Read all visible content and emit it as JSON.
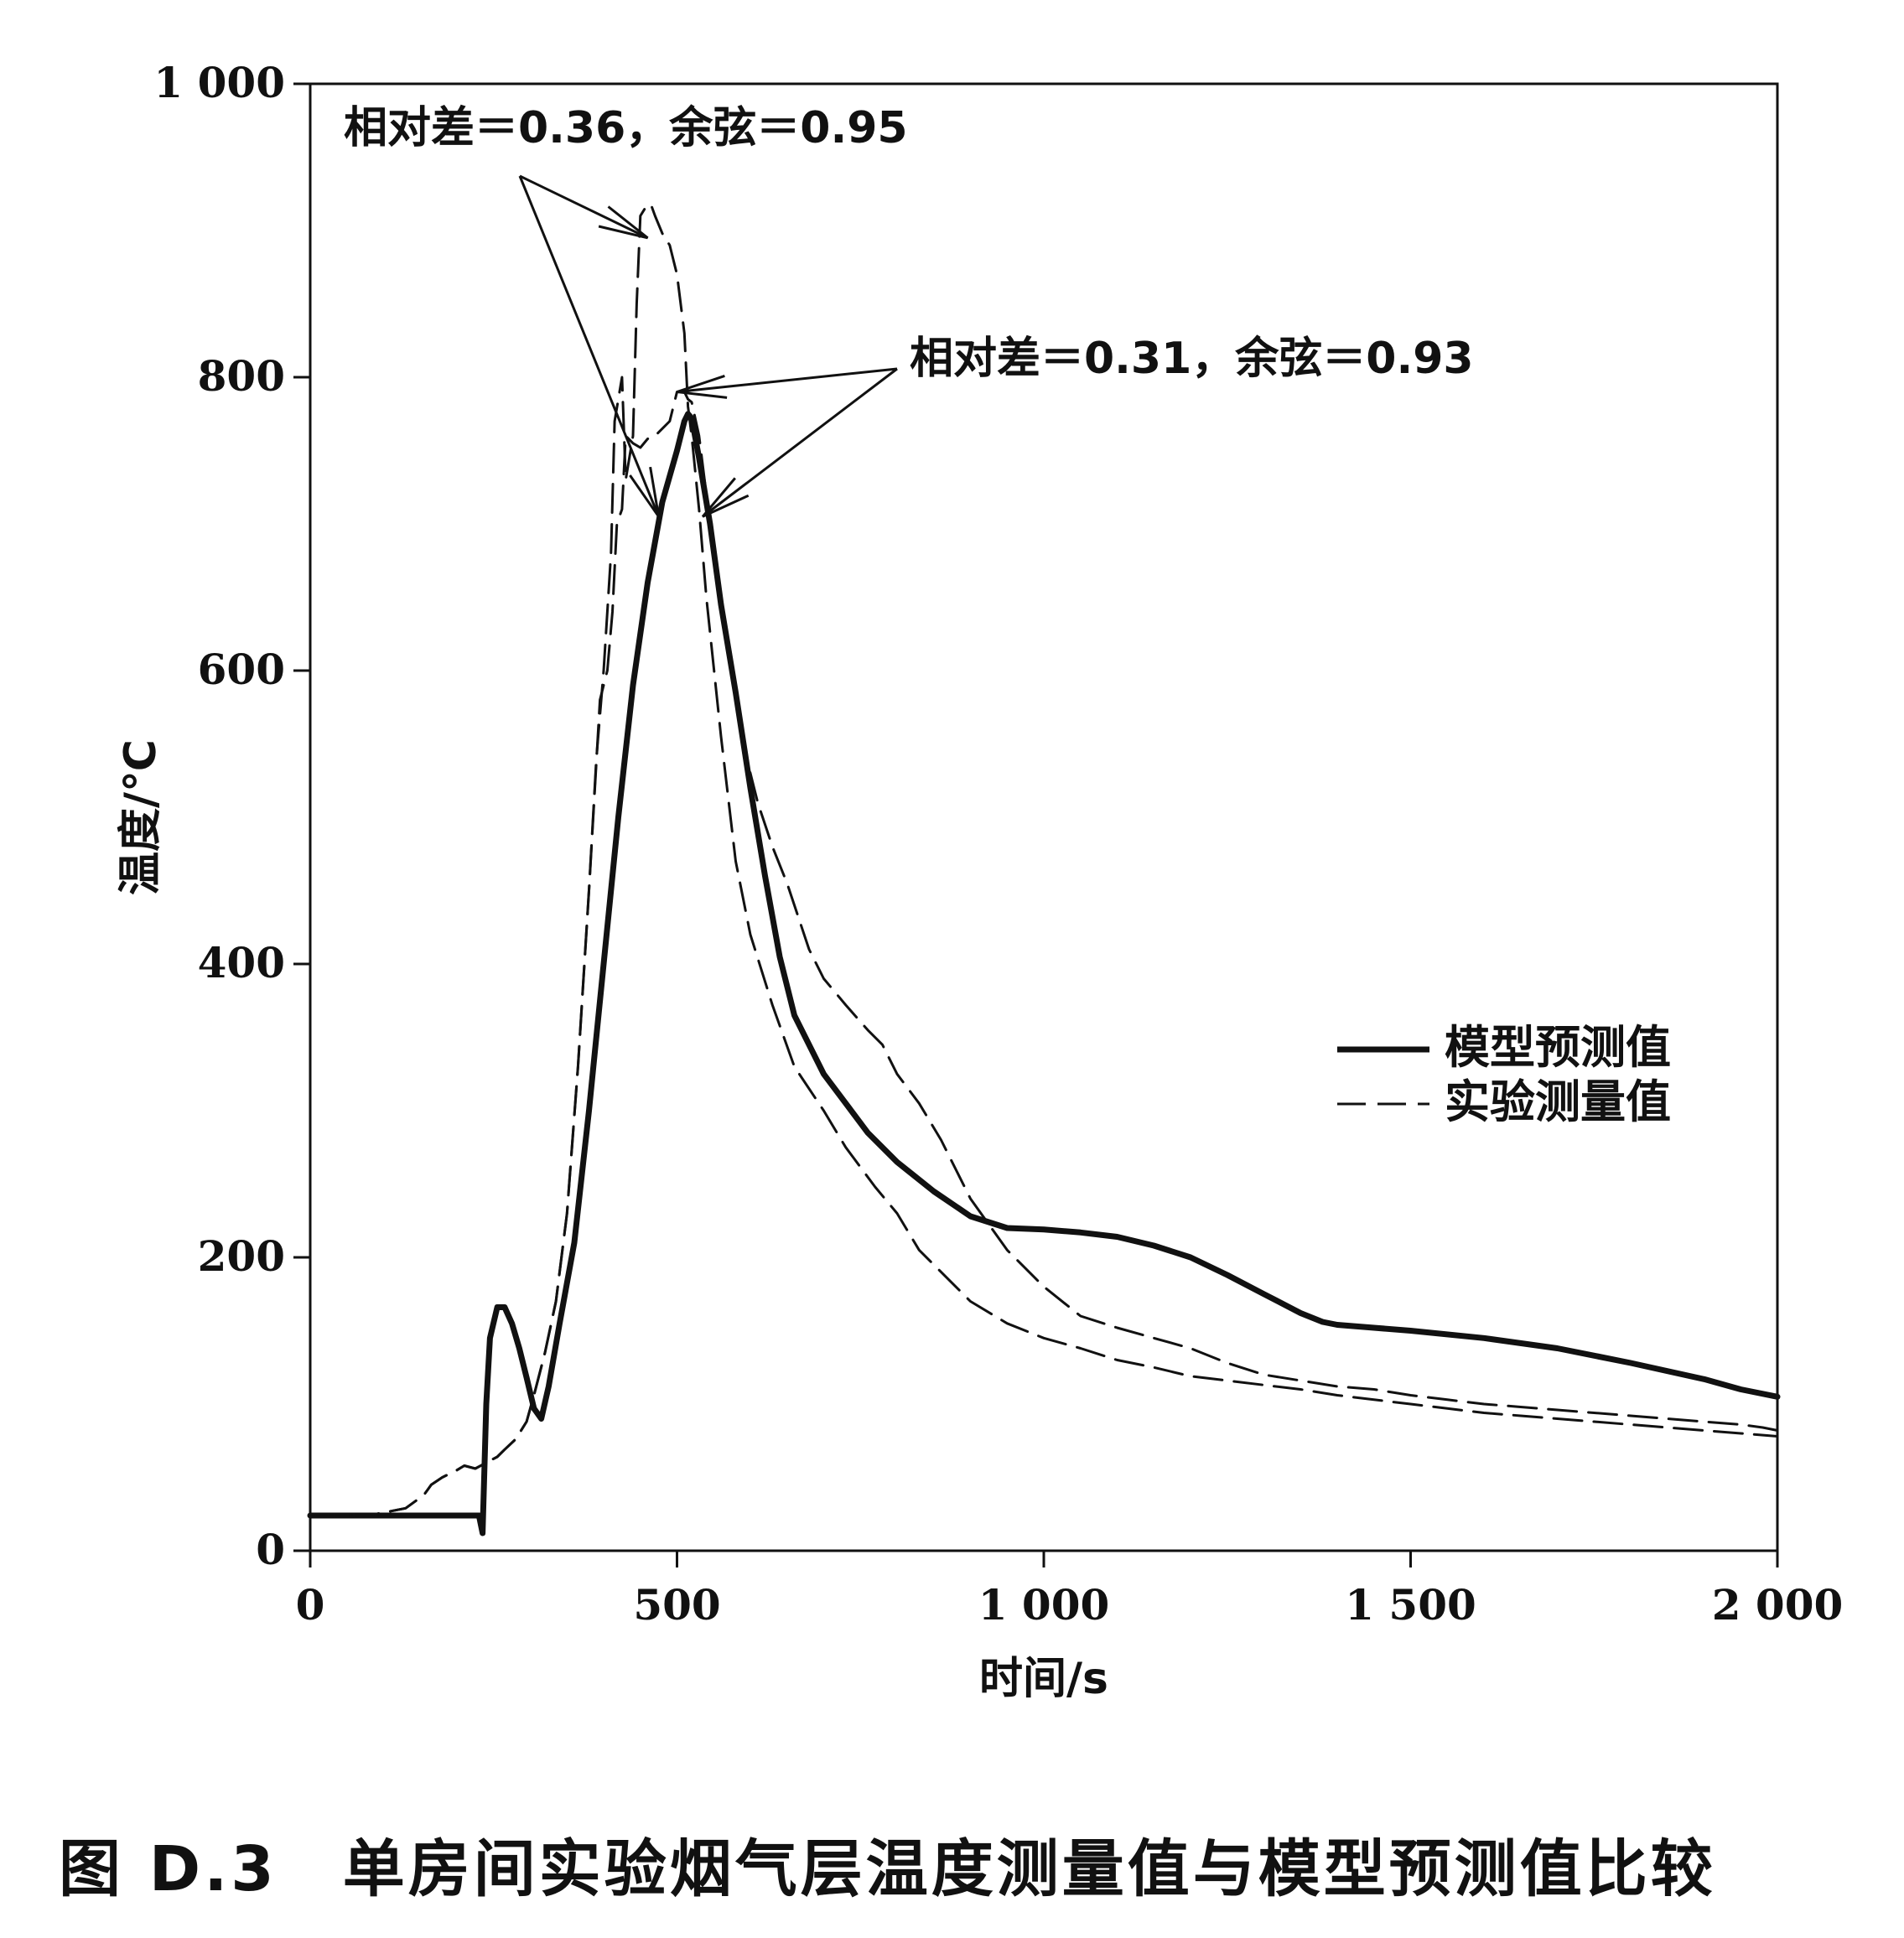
{
  "caption": "图 D.3　单房间实验烟气层温度测量值与模型预测值比较",
  "chart_data": {
    "type": "line",
    "title": "",
    "xlabel": "时间/s",
    "ylabel": "温度/℃",
    "xlim": [
      0,
      2000
    ],
    "ylim": [
      0,
      1000
    ],
    "xticks": [
      0,
      500,
      1000,
      1500,
      2000
    ],
    "xtick_labels": [
      "0",
      "500",
      "1 000",
      "1 500",
      "2 000"
    ],
    "yticks": [
      0,
      200,
      400,
      600,
      800,
      1000
    ],
    "ytick_labels": [
      "0",
      "200",
      "400",
      "600",
      "800",
      "1 000"
    ],
    "grid": false,
    "legend_position": "right-middle",
    "series": [
      {
        "name": "模型预测值",
        "style": "solid",
        "color": "#111111",
        "group": "A",
        "x": [
          0,
          230,
          235,
          240,
          245,
          255,
          265,
          275,
          285,
          295,
          305,
          315,
          325,
          340,
          360,
          380,
          400,
          420,
          440,
          460,
          480,
          500,
          510,
          515,
          520,
          530,
          545,
          560,
          580,
          600,
          620,
          640,
          660,
          680,
          700,
          730,
          760,
          800,
          850,
          900,
          950,
          1000,
          1050,
          1100,
          1150,
          1200,
          1250,
          1300,
          1350,
          1380,
          1400,
          1450,
          1500,
          1600,
          1700,
          1800,
          1900,
          1950,
          2000
        ],
        "y": [
          24,
          24,
          12,
          100,
          145,
          166,
          166,
          155,
          138,
          118,
          97,
          90,
          112,
          155,
          210,
          300,
          400,
          500,
          590,
          660,
          715,
          750,
          770,
          775,
          772,
          745,
          700,
          645,
          585,
          520,
          460,
          405,
          365,
          345,
          325,
          305,
          285,
          265,
          245,
          228,
          220,
          219,
          217,
          214,
          208,
          200,
          188,
          175,
          162,
          156,
          154,
          152,
          150,
          145,
          138,
          128,
          117,
          110,
          105
        ]
      },
      {
        "name": "实验测量值",
        "style": "dashed",
        "color": "#111111",
        "group": "A",
        "x": [
          0,
          80,
          100,
          130,
          155,
          165,
          180,
          200,
          210,
          225,
          240,
          255,
          265,
          280,
          295,
          305,
          320,
          335,
          350,
          365,
          380,
          395,
          405,
          412,
          418,
          425,
          430,
          440,
          450,
          460,
          470,
          480,
          490,
          500,
          510,
          515,
          520,
          530,
          540,
          555,
          570,
          590,
          610,
          630,
          650,
          680,
          700,
          730,
          760,
          780,
          800,
          830,
          860,
          900,
          950,
          1000,
          1050,
          1100,
          1150,
          1200,
          1250,
          1300,
          1350,
          1400,
          1450,
          1500,
          1550,
          1600,
          1650,
          1700,
          1750,
          1800,
          1850,
          1900,
          1950,
          1980,
          2000
        ],
        "y": [
          23,
          24,
          26,
          29,
          38,
          45,
          50,
          55,
          58,
          56,
          60,
          64,
          69,
          76,
          88,
          106,
          135,
          170,
          230,
          330,
          450,
          580,
          600,
          640,
          700,
          710,
          760,
          755,
          752,
          758,
          760,
          765,
          770,
          790,
          790,
          785,
          783,
          760,
          720,
          660,
          610,
          550,
          510,
          480,
          455,
          410,
          390,
          372,
          355,
          345,
          325,
          305,
          280,
          240,
          205,
          180,
          160,
          152,
          145,
          138,
          128,
          120,
          116,
          112,
          110,
          106,
          103,
          100,
          98,
          96,
          94,
          92,
          90,
          88,
          86,
          84,
          82
        ]
      },
      {
        "name": "实验测量值",
        "style": "dashed",
        "color": "#111111",
        "group": "B",
        "x": [
          0,
          80,
          100,
          130,
          155,
          165,
          180,
          200,
          210,
          225,
          240,
          255,
          265,
          280,
          295,
          305,
          320,
          335,
          350,
          365,
          380,
          390,
          400,
          410,
          415,
          425,
          430,
          440,
          445,
          450,
          460,
          465,
          470,
          480,
          490,
          500,
          510,
          515,
          520,
          530,
          540,
          560,
          580,
          600,
          630,
          660,
          700,
          730,
          770,
          800,
          830,
          870,
          900,
          950,
          1000,
          1050,
          1100,
          1150,
          1200,
          1250,
          1300,
          1350,
          1400,
          1450,
          1500,
          1550,
          1600,
          1650,
          1700,
          1750,
          1800,
          1850,
          1900,
          1950,
          2000
        ],
        "y": [
          23,
          24,
          26,
          29,
          38,
          45,
          50,
          55,
          58,
          56,
          60,
          64,
          69,
          76,
          88,
          106,
          135,
          170,
          230,
          330,
          450,
          540,
          600,
          680,
          770,
          800,
          730,
          760,
          850,
          910,
          918,
          917,
          910,
          898,
          890,
          870,
          830,
          780,
          760,
          710,
          650,
          555,
          470,
          420,
          372,
          330,
          300,
          275,
          248,
          230,
          205,
          185,
          170,
          155,
          145,
          138,
          130,
          125,
          119,
          116,
          113,
          110,
          106,
          103,
          100,
          97,
          94,
          92,
          90,
          88,
          86,
          84,
          82,
          80,
          78
        ]
      }
    ],
    "annotations": [
      {
        "text": "相对差＝0.36，余弦＝0.95",
        "targets": [
          [
            460,
            895
          ],
          [
            475,
            705
          ]
        ]
      },
      {
        "text": "相对差＝0.31，余弦＝0.93",
        "targets": [
          [
            500,
            790
          ],
          [
            535,
            705
          ]
        ]
      }
    ]
  }
}
